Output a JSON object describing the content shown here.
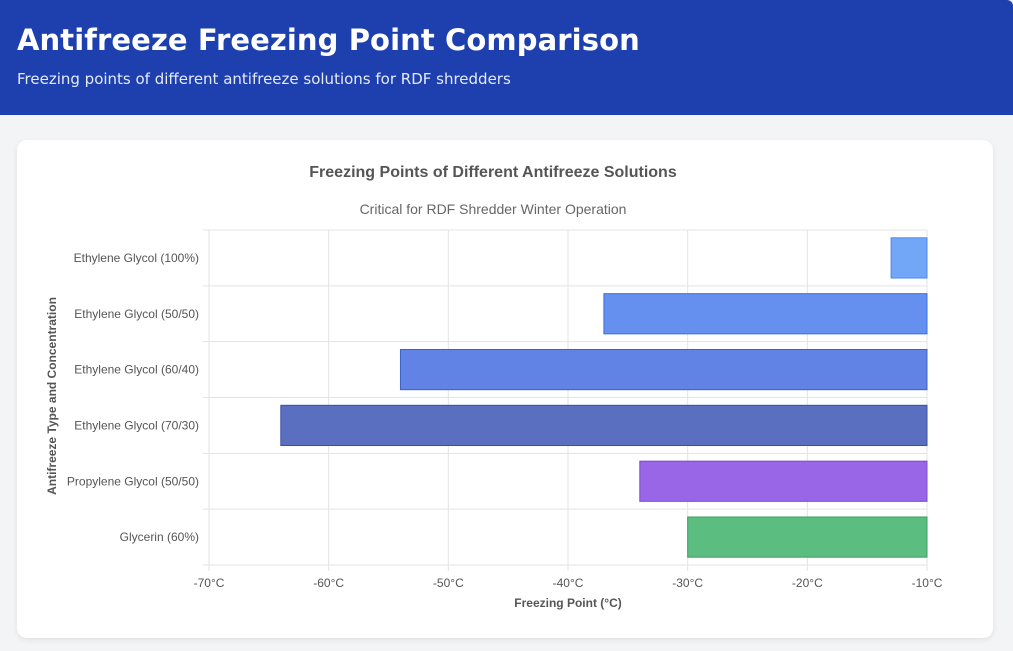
{
  "header": {
    "title": "Antifreeze Freezing Point Comparison",
    "subtitle": "Freezing points of different antifreeze solutions for RDF shredders"
  },
  "chart_data": {
    "type": "bar",
    "orientation": "horizontal",
    "title": "Freezing Points of Different Antifreeze Solutions",
    "subtitle": "Critical for RDF Shredder Winter Operation",
    "xlabel": "Freezing Point (°C)",
    "ylabel": "Antifreeze Type and Concentration",
    "xlim": [
      -70,
      -10
    ],
    "x_ticks": [
      -70,
      -60,
      -50,
      -40,
      -30,
      -20,
      -10
    ],
    "tick_suffix": "°C",
    "grid": true,
    "categories": [
      "Ethylene Glycol (100%)",
      "Ethylene Glycol (50/50)",
      "Ethylene Glycol (60/40)",
      "Ethylene Glycol (70/30)",
      "Propylene Glycol (50/50)",
      "Glycerin (60%)"
    ],
    "values": [
      -13,
      -37,
      -54,
      -64,
      -34,
      -30
    ],
    "colors": [
      {
        "fill": "#72a6f7",
        "stroke": "#4f86e8"
      },
      {
        "fill": "#6690ef",
        "stroke": "#3b6fdc"
      },
      {
        "fill": "#6283e6",
        "stroke": "#3c62cc"
      },
      {
        "fill": "#5b6fc1",
        "stroke": "#3b4fa8"
      },
      {
        "fill": "#9866e6",
        "stroke": "#7b4bd1"
      },
      {
        "fill": "#5bbd80",
        "stroke": "#3e9e63"
      }
    ]
  }
}
